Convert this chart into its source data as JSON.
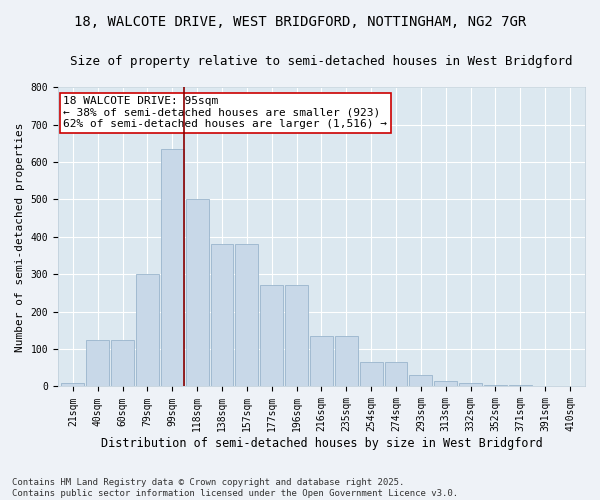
{
  "title": "18, WALCOTE DRIVE, WEST BRIDGFORD, NOTTINGHAM, NG2 7GR",
  "subtitle": "Size of property relative to semi-detached houses in West Bridgford",
  "xlabel": "Distribution of semi-detached houses by size in West Bridgford",
  "ylabel": "Number of semi-detached properties",
  "categories": [
    "21sqm",
    "40sqm",
    "60sqm",
    "79sqm",
    "99sqm",
    "118sqm",
    "138sqm",
    "157sqm",
    "177sqm",
    "196sqm",
    "216sqm",
    "235sqm",
    "254sqm",
    "274sqm",
    "293sqm",
    "313sqm",
    "332sqm",
    "352sqm",
    "371sqm",
    "391sqm",
    "410sqm"
  ],
  "values": [
    10,
    125,
    125,
    300,
    635,
    500,
    380,
    380,
    270,
    270,
    135,
    135,
    65,
    65,
    30,
    15,
    10,
    5,
    3,
    2,
    1
  ],
  "bar_color": "#c8d8e8",
  "bar_edge_color": "#9ab5cc",
  "vline_color": "#8b0000",
  "annotation_text": "18 WALCOTE DRIVE: 95sqm\n← 38% of semi-detached houses are smaller (923)\n62% of semi-detached houses are larger (1,516) →",
  "annotation_box_facecolor": "#ffffff",
  "annotation_box_edgecolor": "#cc0000",
  "ylim": [
    0,
    800
  ],
  "yticks": [
    0,
    100,
    200,
    300,
    400,
    500,
    600,
    700,
    800
  ],
  "background_color": "#dce8f0",
  "fig_background": "#eef2f7",
  "footnote": "Contains HM Land Registry data © Crown copyright and database right 2025.\nContains public sector information licensed under the Open Government Licence v3.0.",
  "title_fontsize": 10,
  "subtitle_fontsize": 9,
  "xlabel_fontsize": 8.5,
  "ylabel_fontsize": 8,
  "tick_fontsize": 7,
  "annotation_fontsize": 8,
  "footnote_fontsize": 6.5
}
